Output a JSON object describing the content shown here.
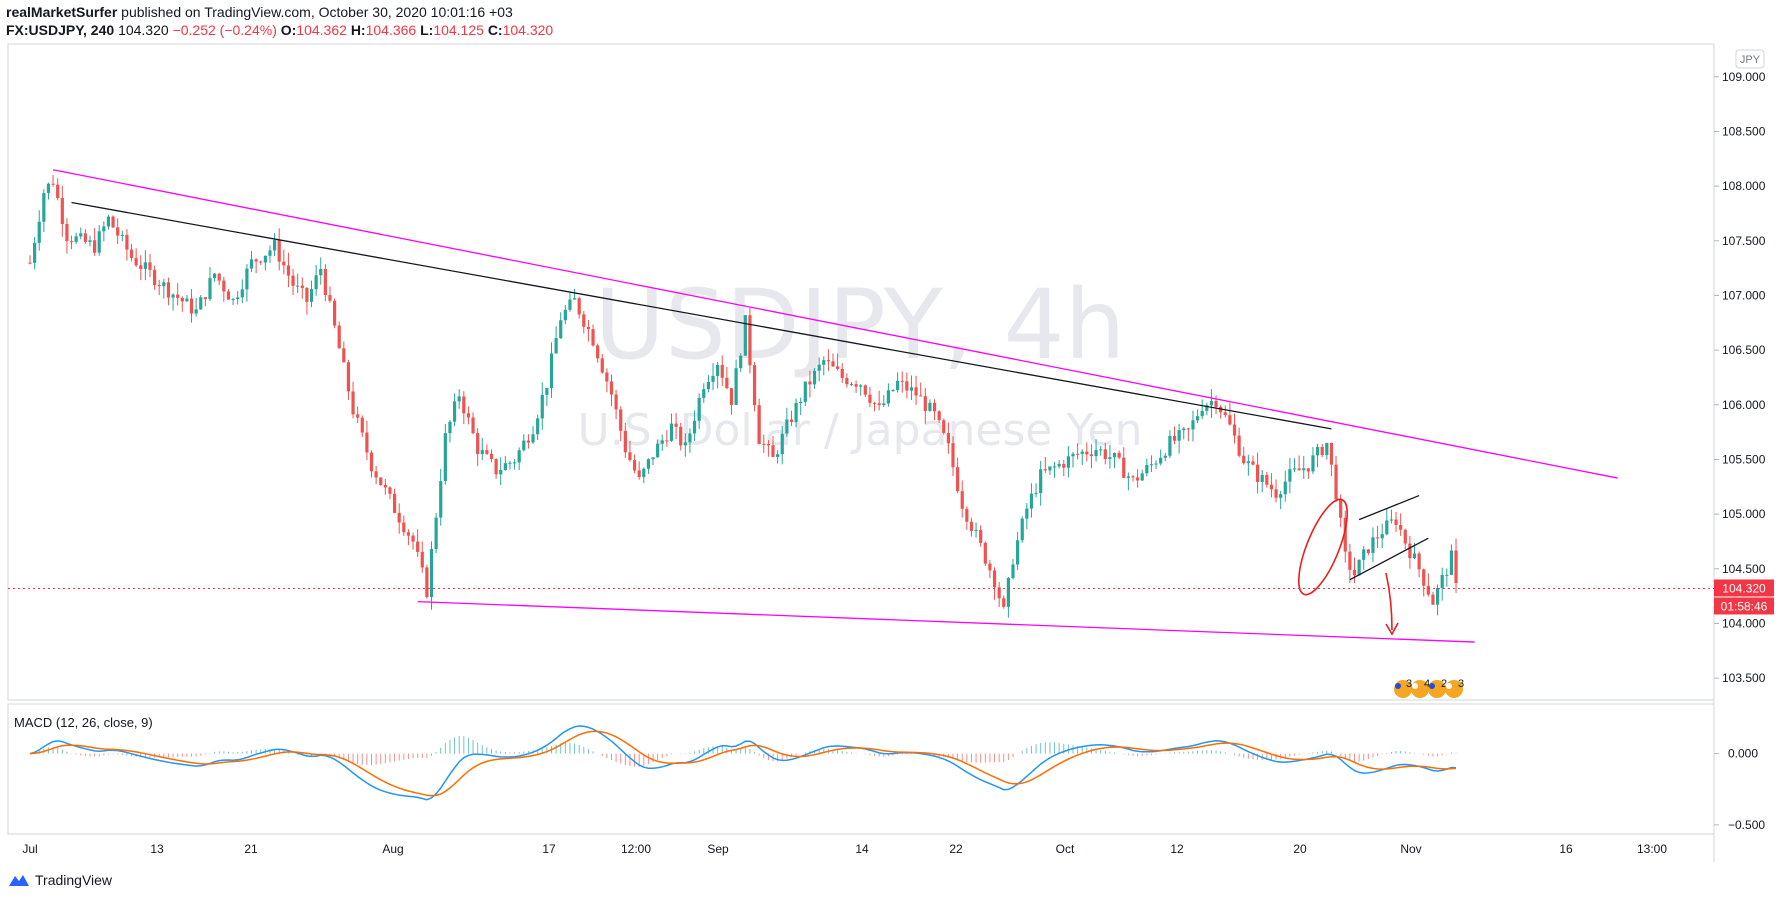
{
  "header": {
    "publisher": "realMarketSurfer",
    "published_text": " published on TradingView.com, October 30, 2020 10:01:16 +03"
  },
  "quote": {
    "symbol": "FX:USDJPY, 240",
    "last": "104.320",
    "change": "−0.252 (−0.24%)",
    "open_label": "O:",
    "open": "104.362",
    "high_label": "H:",
    "high": "104.366",
    "low_label": "L:",
    "low": "104.125",
    "close_label": "C:",
    "close": "104.320"
  },
  "watermark": {
    "title": "USDJPY, 4h",
    "subtitle": "U.S. Dollar / Japanese Yen"
  },
  "currency_badge": "JPY",
  "price_tag": "104.320",
  "countdown_tag": "01:58:46",
  "events_badge": [
    "3",
    "4",
    "2",
    "3"
  ],
  "footer": {
    "brand": "TradingView"
  },
  "colors": {
    "up": "#26a69a",
    "down": "#ef5350",
    "trendline_magenta": "#ff00ff",
    "trendline_black": "#131722",
    "annotation_red": "#e91e1e",
    "macd_line": "#2196f3",
    "signal_line": "#ff6d00",
    "price_tag_bg": "#f23645"
  },
  "chart_data": {
    "type": "candlestick",
    "title": "USDJPY, 4h",
    "subtitle": "U.S. Dollar / Japanese Yen",
    "price_axis": {
      "ticks": [
        "109.000",
        "108.500",
        "108.000",
        "107.500",
        "107.000",
        "106.500",
        "106.000",
        "105.500",
        "105.000",
        "104.500",
        "104.000",
        "103.500"
      ],
      "range": [
        103.3,
        109.3
      ]
    },
    "time_axis": {
      "ticks": [
        "Jul",
        "13",
        "21",
        "Aug",
        "17",
        "12:00",
        "Sep",
        "14",
        "22",
        "Oct",
        "12",
        "20",
        "Nov",
        "16",
        "13:00"
      ]
    },
    "path_anchors": [
      {
        "t": 0,
        "p": 107.3
      },
      {
        "t": 3,
        "p": 107.95
      },
      {
        "t": 5,
        "p": 108.05
      },
      {
        "t": 8,
        "p": 107.55
      },
      {
        "t": 14,
        "p": 107.45
      },
      {
        "t": 17,
        "p": 107.7
      },
      {
        "t": 22,
        "p": 107.35
      },
      {
        "t": 30,
        "p": 107.05
      },
      {
        "t": 36,
        "p": 106.85
      },
      {
        "t": 40,
        "p": 107.2
      },
      {
        "t": 44,
        "p": 106.95
      },
      {
        "t": 48,
        "p": 107.3
      },
      {
        "t": 53,
        "p": 107.45
      },
      {
        "t": 57,
        "p": 107.1
      },
      {
        "t": 60,
        "p": 106.95
      },
      {
        "t": 63,
        "p": 107.25
      },
      {
        "t": 66,
        "p": 106.7
      },
      {
        "t": 70,
        "p": 105.95
      },
      {
        "t": 74,
        "p": 105.45
      },
      {
        "t": 79,
        "p": 105.05
      },
      {
        "t": 83,
        "p": 104.75
      },
      {
        "t": 86,
        "p": 104.3
      },
      {
        "t": 88,
        "p": 105.0
      },
      {
        "t": 90,
        "p": 105.7
      },
      {
        "t": 93,
        "p": 106.1
      },
      {
        "t": 97,
        "p": 105.6
      },
      {
        "t": 101,
        "p": 105.4
      },
      {
        "t": 105,
        "p": 105.5
      },
      {
        "t": 109,
        "p": 105.8
      },
      {
        "t": 112,
        "p": 106.2
      },
      {
        "t": 115,
        "p": 106.8
      },
      {
        "t": 118,
        "p": 106.95
      },
      {
        "t": 122,
        "p": 106.6
      },
      {
        "t": 126,
        "p": 106.1
      },
      {
        "t": 129,
        "p": 105.6
      },
      {
        "t": 132,
        "p": 105.3
      },
      {
        "t": 135,
        "p": 105.55
      },
      {
        "t": 139,
        "p": 105.8
      },
      {
        "t": 142,
        "p": 105.6
      },
      {
        "t": 146,
        "p": 106.2
      },
      {
        "t": 149,
        "p": 106.4
      },
      {
        "t": 152,
        "p": 106.05
      },
      {
        "t": 155,
        "p": 106.75
      },
      {
        "t": 158,
        "p": 105.7
      },
      {
        "t": 161,
        "p": 105.5
      },
      {
        "t": 164,
        "p": 105.8
      },
      {
        "t": 168,
        "p": 106.15
      },
      {
        "t": 172,
        "p": 106.4
      },
      {
        "t": 176,
        "p": 106.25
      },
      {
        "t": 180,
        "p": 106.2
      },
      {
        "t": 184,
        "p": 105.95
      },
      {
        "t": 188,
        "p": 106.2
      },
      {
        "t": 192,
        "p": 106.1
      },
      {
        "t": 196,
        "p": 105.9
      },
      {
        "t": 199,
        "p": 105.6
      },
      {
        "t": 202,
        "p": 105.1
      },
      {
        "t": 206,
        "p": 104.7
      },
      {
        "t": 209,
        "p": 104.4
      },
      {
        "t": 211,
        "p": 104.1
      },
      {
        "t": 213,
        "p": 104.6
      },
      {
        "t": 216,
        "p": 105.05
      },
      {
        "t": 219,
        "p": 105.35
      },
      {
        "t": 223,
        "p": 105.45
      },
      {
        "t": 227,
        "p": 105.55
      },
      {
        "t": 231,
        "p": 105.6
      },
      {
        "t": 235,
        "p": 105.5
      },
      {
        "t": 239,
        "p": 105.3
      },
      {
        "t": 243,
        "p": 105.45
      },
      {
        "t": 247,
        "p": 105.65
      },
      {
        "t": 251,
        "p": 105.75
      },
      {
        "t": 254,
        "p": 106.0
      },
      {
        "t": 257,
        "p": 106.05
      },
      {
        "t": 260,
        "p": 105.8
      },
      {
        "t": 263,
        "p": 105.5
      },
      {
        "t": 266,
        "p": 105.35
      },
      {
        "t": 270,
        "p": 105.2
      },
      {
        "t": 273,
        "p": 105.35
      },
      {
        "t": 277,
        "p": 105.45
      },
      {
        "t": 281,
        "p": 105.65
      },
      {
        "t": 283,
        "p": 105.2
      },
      {
        "t": 285,
        "p": 104.6
      },
      {
        "t": 287,
        "p": 104.45
      },
      {
        "t": 290,
        "p": 104.7
      },
      {
        "t": 293,
        "p": 104.85
      },
      {
        "t": 296,
        "p": 104.95
      },
      {
        "t": 298,
        "p": 104.75
      },
      {
        "t": 301,
        "p": 104.5
      },
      {
        "t": 304,
        "p": 104.2
      },
      {
        "t": 306,
        "p": 104.4
      },
      {
        "t": 308,
        "p": 104.6
      },
      {
        "t": 309,
        "p": 104.32
      }
    ],
    "trendlines": [
      {
        "name": "upper-resistance",
        "color": "magenta",
        "from": {
          "t": 5,
          "p": 108.15
        },
        "to": {
          "t": 344,
          "p": 105.33
        }
      },
      {
        "name": "lower-support",
        "color": "magenta",
        "from": {
          "t": 84,
          "p": 104.2
        },
        "to": {
          "t": 313,
          "p": 103.83
        }
      },
      {
        "name": "inner-resistance",
        "color": "black",
        "from": {
          "t": 9,
          "p": 107.85
        },
        "to": {
          "t": 282,
          "p": 105.78
        }
      },
      {
        "name": "channel-top",
        "color": "black",
        "from": {
          "t": 288,
          "p": 104.95
        },
        "to": {
          "t": 301,
          "p": 105.17
        }
      },
      {
        "name": "channel-bottom",
        "color": "black",
        "from": {
          "t": 286,
          "p": 104.4
        },
        "to": {
          "t": 303,
          "p": 104.78
        }
      }
    ],
    "current_price": 104.32,
    "macd": {
      "label": "MACD (12, 26, close, 9)",
      "ticks": [
        "0.000",
        "−0.500"
      ],
      "range": [
        -0.55,
        0.32
      ]
    }
  }
}
